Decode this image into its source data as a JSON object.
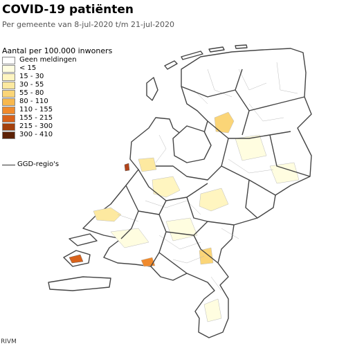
{
  "title": "COVID-19 patiënten",
  "subtitle": "Per gemeente van 8-jul-2020 t/m 21-jul-2020",
  "legend": {
    "title": "Aantal per 100.000 inwoners",
    "classes": [
      {
        "label": "Geen meldingen",
        "color": "#ffffff"
      },
      {
        "label": "< 15",
        "color": "#fffde0"
      },
      {
        "label": "15 - 30",
        "color": "#fff5c0"
      },
      {
        "label": "30 - 55",
        "color": "#fde9a0"
      },
      {
        "label": "55 - 80",
        "color": "#fbd577"
      },
      {
        "label": "80 - 110",
        "color": "#f8b84e"
      },
      {
        "label": "110 - 155",
        "color": "#f08a2c"
      },
      {
        "label": "155 - 215",
        "color": "#d9621a"
      },
      {
        "label": "215 - 300",
        "color": "#a4400c"
      },
      {
        "label": "300 - 410",
        "color": "#5c2106"
      }
    ],
    "ggd_label": "GGD-regio's"
  },
  "source": "RIVM"
}
